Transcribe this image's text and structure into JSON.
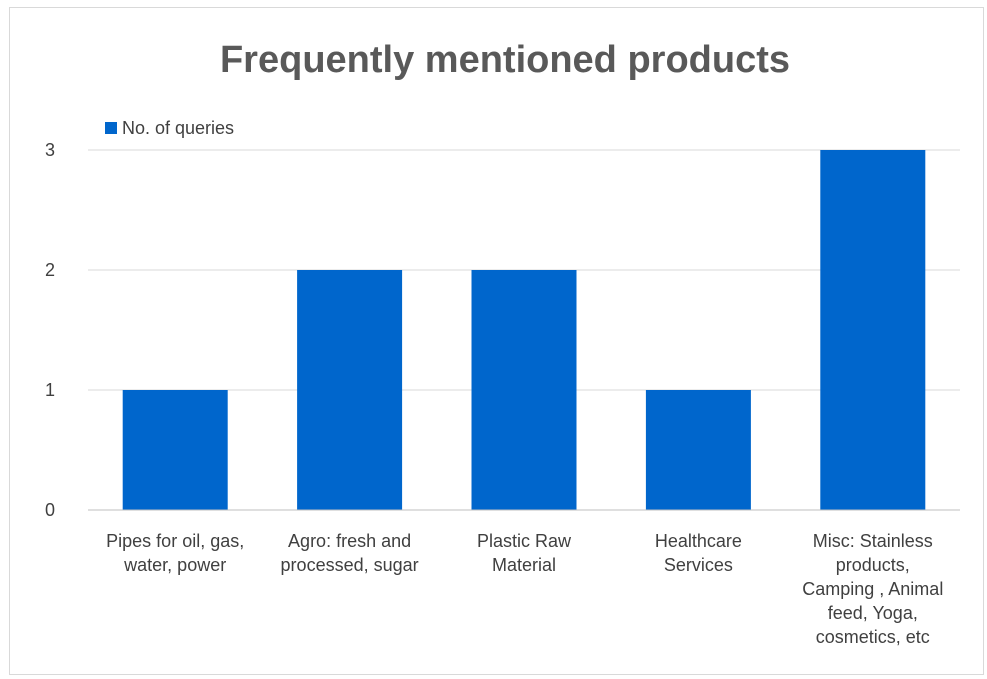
{
  "chart_data": {
    "type": "bar",
    "title": "Frequently mentioned products",
    "xlabel": "",
    "ylabel": "",
    "categories": [
      "Pipes for oil, gas, water, power",
      "Agro: fresh and processed, sugar",
      "Plastic Raw Material",
      "Healthcare Services",
      "Misc: Stainless products, Camping , Animal feed, Yoga, cosmetics, etc"
    ],
    "category_lines": [
      [
        "Pipes for oil, gas,",
        "water, power"
      ],
      [
        "Agro: fresh and",
        "processed, sugar"
      ],
      [
        "Plastic Raw",
        "Material"
      ],
      [
        "Healthcare",
        "Services"
      ],
      [
        "Misc: Stainless",
        "products,",
        "Camping , Animal",
        "feed, Yoga,",
        "cosmetics, etc"
      ]
    ],
    "series": [
      {
        "name": "No. of queries",
        "values": [
          1,
          2,
          2,
          1,
          3
        ],
        "color": "#0066cc"
      }
    ],
    "ylim": [
      0,
      3
    ],
    "yticks": [
      0,
      1,
      2,
      3
    ],
    "grid": true,
    "legend_position": "top-left"
  }
}
